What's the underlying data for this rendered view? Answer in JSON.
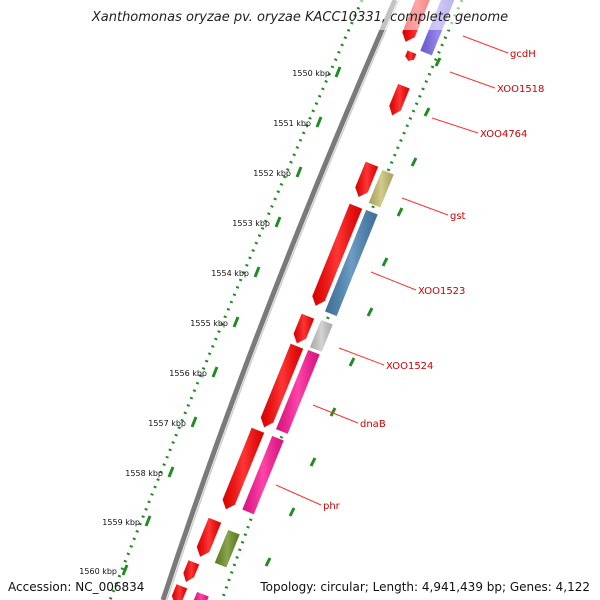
{
  "title": "Xanthomonas oryzae pv. oryzae KACC10331, complete genome",
  "footer": {
    "accession": "Accession: NC_006834",
    "summary": "Topology: circular; Length: 4,941,439 bp; Genes: 4,122"
  },
  "ticks": [
    "1550 kbp",
    "1551 kbp",
    "1552 kbp",
    "1553 kbp",
    "1554 kbp",
    "1555 kbp",
    "1556 kbp",
    "1557 kbp",
    "1558 kbp",
    "1559 kbp",
    "1560 kbp"
  ],
  "gene_labels": [
    "gcdH",
    "XOO1518",
    "XOO4764",
    "gst",
    "XOO1523",
    "XOO1524",
    "dnaB",
    "phr"
  ],
  "colors": {
    "cds": "#ff0000",
    "label": "#cc0000",
    "gcdH": "#7b68ee",
    "gst": "#c8be6e",
    "XOO1523": "#4682b4",
    "XOO1524": "#c8c8c8",
    "dnaB": "#ff1493",
    "phr": "#ff1493",
    "green_feature": "#6b8e23",
    "backbone": "#7a7a7a",
    "dotted_ring": "#228b22"
  }
}
